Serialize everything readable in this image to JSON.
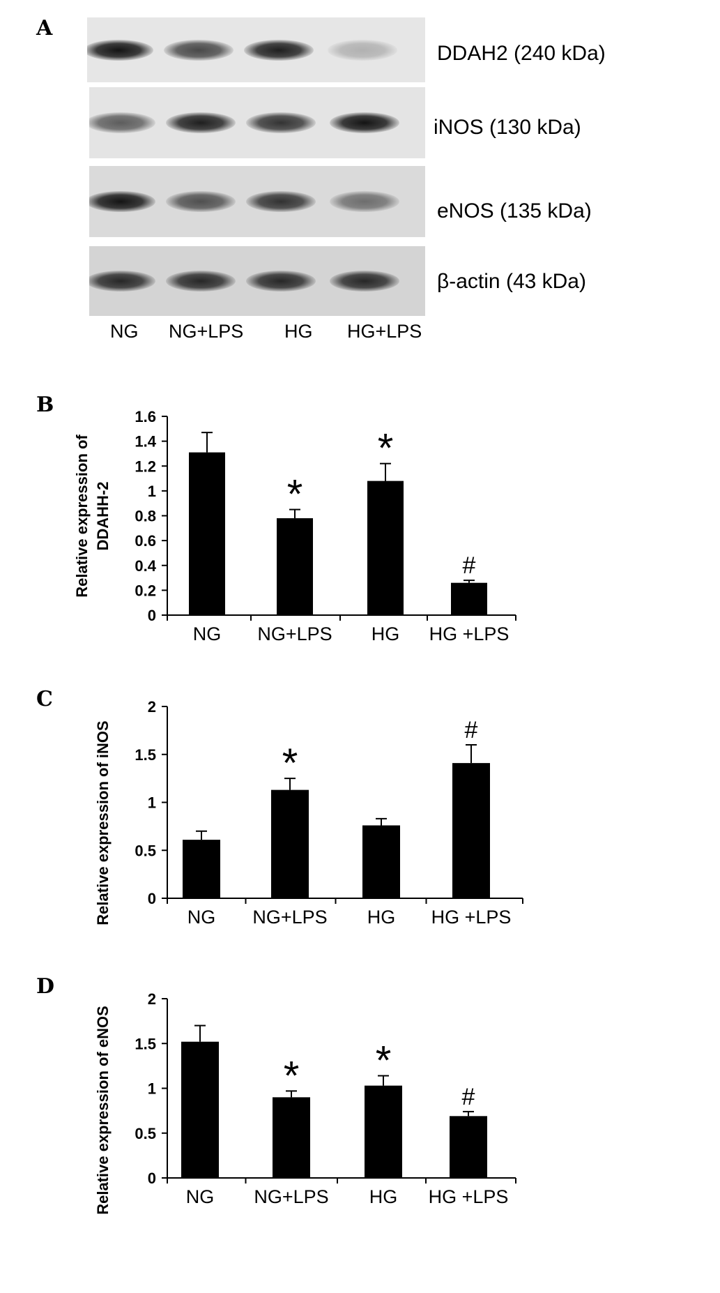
{
  "panels": {
    "a": "A",
    "b": "B",
    "c": "C",
    "d": "D"
  },
  "blot": {
    "lanes": [
      "NG",
      "NG+LPS",
      "HG",
      "HG+LPS"
    ],
    "rows": [
      {
        "label": "DDAH2 (240 kDa)",
        "intensities": [
          1.0,
          0.75,
          0.95,
          0.25
        ],
        "background": "#e6e6e6"
      },
      {
        "label": "iNOS (130 kDa)",
        "intensities": [
          0.65,
          0.95,
          0.85,
          1.0
        ],
        "background": "#e4e4e4"
      },
      {
        "label": "eNOS (135 kDa)",
        "intensities": [
          1.0,
          0.7,
          0.85,
          0.55
        ],
        "background": "#dadada"
      },
      {
        "label": "β-actin (43 kDa)",
        "intensities": [
          0.9,
          0.9,
          0.9,
          0.9
        ],
        "background": "#d4d4d4"
      }
    ]
  },
  "chart_data": [
    {
      "type": "bar",
      "panel": "B",
      "categories": [
        "NG",
        "NG+LPS",
        "HG",
        "HG +LPS"
      ],
      "values": [
        1.31,
        0.78,
        1.08,
        0.26
      ],
      "errors": [
        0.16,
        0.07,
        0.14,
        0.02
      ],
      "annotations": [
        "",
        "*",
        "*",
        "#"
      ],
      "ylabel": "Relative expression of DDAHH-2",
      "ylabel_lines": [
        "Relative expression of",
        "DDAHH-2"
      ],
      "ylim": [
        0,
        1.6
      ],
      "yticks": [
        0,
        0.2,
        0.4,
        0.6,
        0.8,
        1,
        1.2,
        1.4,
        1.6
      ],
      "ytick_labels": [
        "0",
        "0.2",
        "0.4",
        "0.6",
        "0.8",
        "1",
        "1.2",
        "1.4",
        "1.6"
      ],
      "grid": false,
      "bar_color": "#000000"
    },
    {
      "type": "bar",
      "panel": "C",
      "categories": [
        "NG",
        "NG+LPS",
        "HG",
        "HG +LPS"
      ],
      "values": [
        0.61,
        1.13,
        0.76,
        1.41
      ],
      "errors": [
        0.09,
        0.12,
        0.07,
        0.19
      ],
      "annotations": [
        "",
        "*",
        "",
        "#"
      ],
      "ylabel": "Relative expression of iNOS",
      "ylabel_lines": [
        "Relative expression of iNOS"
      ],
      "ylim": [
        0,
        2
      ],
      "yticks": [
        0,
        0.5,
        1,
        1.5,
        2
      ],
      "ytick_labels": [
        "0",
        "0.5",
        "1",
        "1.5",
        "2"
      ],
      "grid": false,
      "bar_color": "#000000"
    },
    {
      "type": "bar",
      "panel": "D",
      "categories": [
        "NG",
        "NG+LPS",
        "HG",
        "HG +LPS"
      ],
      "values": [
        1.52,
        0.9,
        1.03,
        0.69
      ],
      "errors": [
        0.18,
        0.07,
        0.11,
        0.05
      ],
      "annotations": [
        "",
        "*",
        "*",
        "#"
      ],
      "ylabel": "Relative expression of eNOS",
      "ylabel_lines": [
        "Relative expression of eNOS"
      ],
      "ylim": [
        0,
        2
      ],
      "yticks": [
        0,
        0.5,
        1,
        1.5,
        2
      ],
      "ytick_labels": [
        "0",
        "0.5",
        "1",
        "1.5",
        "2"
      ],
      "grid": false,
      "bar_color": "#000000"
    }
  ]
}
